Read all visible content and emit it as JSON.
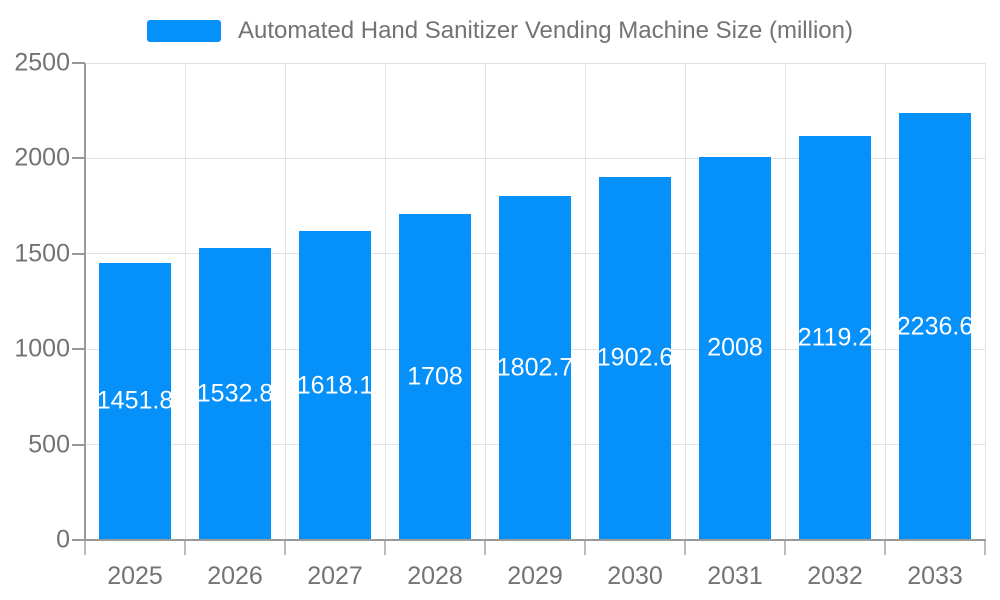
{
  "chart_data": {
    "type": "bar",
    "title": "Automated Hand Sanitizer Vending Machine Size (million)",
    "legend_entries": [
      "Automated Hand Sanitizer Vending Machine Size (million)"
    ],
    "legend_position": "top",
    "categories": [
      "2025",
      "2026",
      "2027",
      "2028",
      "2029",
      "2030",
      "2031",
      "2032",
      "2033"
    ],
    "values": [
      1451.8,
      1532.8,
      1618.1,
      1708,
      1802.7,
      1902.6,
      2008,
      2119.2,
      2236.6
    ],
    "xlabel": "",
    "ylabel": "",
    "ylim": [
      0,
      2500
    ],
    "y_ticks": [
      0,
      500,
      1000,
      1500,
      2000,
      2500
    ],
    "grid": true,
    "value_labels_inside_bars": true,
    "colors": {
      "bar": "#0690fa",
      "axis_text": "#737373",
      "legend_text": "#737373",
      "value_label_text": "#ffffff",
      "grid_line": "#e3e3e3",
      "axis_line": "#999999"
    }
  }
}
